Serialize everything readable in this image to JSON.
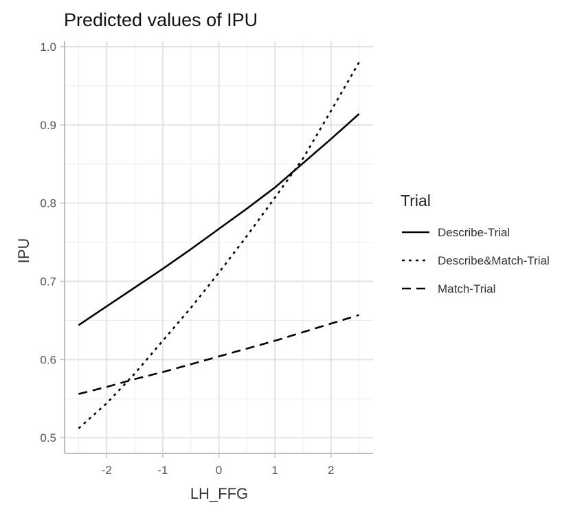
{
  "chart_data": {
    "type": "line",
    "title": "Predicted values of IPU",
    "xlabel": "LH_FFG",
    "ylabel": "IPU",
    "xlim": [
      -2.5,
      2.5
    ],
    "ylim": [
      0.5,
      1.0
    ],
    "x_ticks": [
      -2,
      -1,
      0,
      1,
      2
    ],
    "x_tick_labels": [
      "-2",
      "-1",
      "0",
      "1",
      "2"
    ],
    "y_ticks": [
      0.5,
      0.6,
      0.7,
      0.8,
      0.9,
      1.0
    ],
    "y_tick_labels": [
      "0.5",
      "0.6",
      "0.7",
      "0.8",
      "0.9",
      "1.0"
    ],
    "grid": true,
    "legend": {
      "title": "Trial",
      "position": "right"
    },
    "series": [
      {
        "name": "Describe-Trial",
        "linetype": "solid",
        "color": "#000000",
        "x": [
          -2.5,
          -2,
          -1.5,
          -1,
          -0.5,
          0,
          0.5,
          1,
          1.5,
          2,
          2.5
        ],
        "y": [
          0.644,
          0.668,
          0.692,
          0.716,
          0.741,
          0.767,
          0.793,
          0.82,
          0.851,
          0.882,
          0.914
        ]
      },
      {
        "name": "Describe&Match-Trial",
        "linetype": "dotted",
        "color": "#000000",
        "x": [
          -2.5,
          -2,
          -1.5,
          -1,
          -0.5,
          0,
          0.5,
          1,
          1.5,
          2,
          2.5
        ],
        "y": [
          0.512,
          0.544,
          0.582,
          0.624,
          0.666,
          0.711,
          0.758,
          0.807,
          0.857,
          0.918,
          0.98
        ]
      },
      {
        "name": "Match-Trial",
        "linetype": "dashed",
        "color": "#000000",
        "x": [
          -2.5,
          -2,
          -1.5,
          -1,
          -0.5,
          0,
          0.5,
          1,
          1.5,
          2,
          2.5
        ],
        "y": [
          0.556,
          0.565,
          0.575,
          0.584,
          0.594,
          0.604,
          0.614,
          0.624,
          0.635,
          0.646,
          0.657
        ]
      }
    ]
  }
}
